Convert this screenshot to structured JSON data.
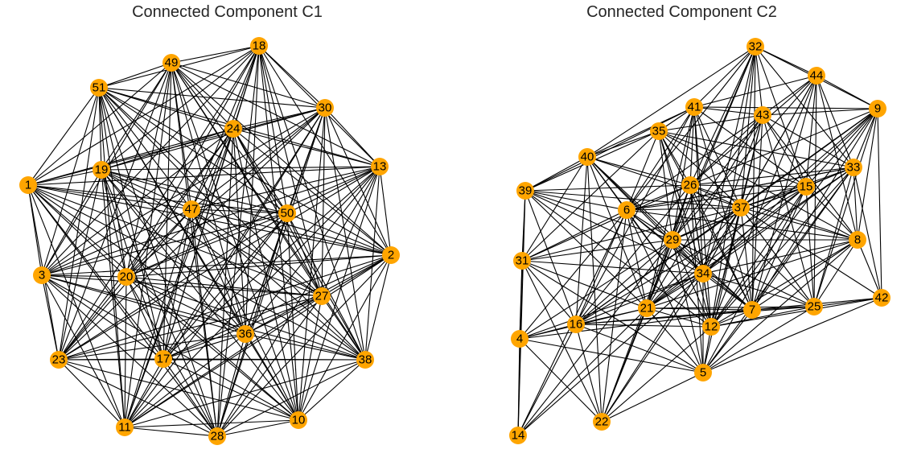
{
  "colors": {
    "node_fill": "#FFA500",
    "edge": "#000000",
    "title_text": "#262626",
    "background": "#FFFFFF"
  },
  "chart_data": [
    {
      "type": "network",
      "title": "Connected Component C1",
      "nodes": [
        "1",
        "2",
        "3",
        "10",
        "11",
        "13",
        "17",
        "18",
        "19",
        "20",
        "23",
        "24",
        "27",
        "28",
        "30",
        "36",
        "38",
        "47",
        "49",
        "50",
        "51"
      ],
      "edge_density": "complete"
    },
    {
      "type": "network",
      "title": "Connected Component C2",
      "nodes": [
        "4",
        "5",
        "6",
        "7",
        "8",
        "9",
        "12",
        "14",
        "15",
        "16",
        "21",
        "22",
        "25",
        "26",
        "29",
        "31",
        "32",
        "33",
        "34",
        "35",
        "37",
        "39",
        "40",
        "41",
        "42",
        "43",
        "44"
      ],
      "edges": [
        [
          "4",
          "14"
        ],
        [
          "4",
          "31"
        ],
        [
          "4",
          "39"
        ],
        [
          "4",
          "16"
        ],
        [
          "4",
          "21"
        ],
        [
          "4",
          "34"
        ],
        [
          "4",
          "29"
        ],
        [
          "4",
          "7"
        ],
        [
          "4",
          "5"
        ],
        [
          "4",
          "22"
        ],
        [
          "4",
          "6"
        ],
        [
          "14",
          "31"
        ],
        [
          "14",
          "39"
        ],
        [
          "14",
          "16"
        ],
        [
          "14",
          "21"
        ],
        [
          "14",
          "29"
        ],
        [
          "14",
          "6"
        ],
        [
          "14",
          "34"
        ],
        [
          "22",
          "16"
        ],
        [
          "22",
          "21"
        ],
        [
          "22",
          "29"
        ],
        [
          "22",
          "6"
        ],
        [
          "22",
          "26"
        ],
        [
          "22",
          "37"
        ],
        [
          "22",
          "34"
        ],
        [
          "22",
          "5"
        ],
        [
          "22",
          "12"
        ],
        [
          "22",
          "31"
        ],
        [
          "22",
          "40"
        ],
        [
          "5",
          "16"
        ],
        [
          "5",
          "21"
        ],
        [
          "5",
          "12"
        ],
        [
          "5",
          "7"
        ],
        [
          "5",
          "25"
        ],
        [
          "5",
          "8"
        ],
        [
          "5",
          "34"
        ],
        [
          "5",
          "37"
        ],
        [
          "5",
          "26"
        ],
        [
          "5",
          "29"
        ],
        [
          "5",
          "6"
        ],
        [
          "5",
          "42"
        ],
        [
          "5",
          "15"
        ],
        [
          "5",
          "33"
        ],
        [
          "5",
          "31"
        ],
        [
          "31",
          "39"
        ],
        [
          "31",
          "40"
        ],
        [
          "31",
          "6"
        ],
        [
          "31",
          "26"
        ],
        [
          "31",
          "29"
        ],
        [
          "31",
          "21"
        ],
        [
          "31",
          "34"
        ],
        [
          "31",
          "37"
        ],
        [
          "31",
          "35"
        ],
        [
          "31",
          "16"
        ],
        [
          "39",
          "40"
        ],
        [
          "39",
          "35"
        ],
        [
          "39",
          "41"
        ],
        [
          "39",
          "26"
        ],
        [
          "39",
          "6"
        ],
        [
          "39",
          "29"
        ],
        [
          "39",
          "21"
        ],
        [
          "39",
          "34"
        ],
        [
          "39",
          "37"
        ],
        [
          "39",
          "16"
        ],
        [
          "39",
          "12"
        ],
        [
          "40",
          "35"
        ],
        [
          "40",
          "41"
        ],
        [
          "40",
          "32"
        ],
        [
          "40",
          "26"
        ],
        [
          "40",
          "6"
        ],
        [
          "40",
          "29"
        ],
        [
          "40",
          "34"
        ],
        [
          "40",
          "37"
        ],
        [
          "40",
          "12"
        ],
        [
          "40",
          "7"
        ],
        [
          "40",
          "21"
        ],
        [
          "40",
          "16"
        ],
        [
          "35",
          "41"
        ],
        [
          "35",
          "43"
        ],
        [
          "35",
          "26"
        ],
        [
          "35",
          "29"
        ],
        [
          "35",
          "6"
        ],
        [
          "35",
          "37"
        ],
        [
          "35",
          "34"
        ],
        [
          "35",
          "12"
        ],
        [
          "35",
          "7"
        ],
        [
          "35",
          "15"
        ],
        [
          "35",
          "33"
        ],
        [
          "35",
          "8"
        ],
        [
          "41",
          "32"
        ],
        [
          "41",
          "43"
        ],
        [
          "41",
          "44"
        ],
        [
          "41",
          "9"
        ],
        [
          "41",
          "26"
        ],
        [
          "41",
          "29"
        ],
        [
          "41",
          "6"
        ],
        [
          "41",
          "37"
        ],
        [
          "41",
          "34"
        ],
        [
          "41",
          "12"
        ],
        [
          "41",
          "7"
        ],
        [
          "41",
          "15"
        ],
        [
          "41",
          "21"
        ],
        [
          "41",
          "16"
        ],
        [
          "32",
          "44"
        ],
        [
          "32",
          "9"
        ],
        [
          "32",
          "43"
        ],
        [
          "32",
          "26"
        ],
        [
          "32",
          "37"
        ],
        [
          "32",
          "34"
        ],
        [
          "32",
          "12"
        ],
        [
          "32",
          "7"
        ],
        [
          "32",
          "15"
        ],
        [
          "32",
          "33"
        ],
        [
          "32",
          "21"
        ],
        [
          "32",
          "29"
        ],
        [
          "32",
          "6"
        ],
        [
          "44",
          "9"
        ],
        [
          "44",
          "43"
        ],
        [
          "44",
          "33"
        ],
        [
          "44",
          "15"
        ],
        [
          "44",
          "37"
        ],
        [
          "44",
          "26"
        ],
        [
          "44",
          "34"
        ],
        [
          "44",
          "12"
        ],
        [
          "44",
          "7"
        ],
        [
          "44",
          "25"
        ],
        [
          "44",
          "8"
        ],
        [
          "44",
          "29"
        ],
        [
          "9",
          "43"
        ],
        [
          "9",
          "33"
        ],
        [
          "9",
          "15"
        ],
        [
          "9",
          "8"
        ],
        [
          "9",
          "42"
        ],
        [
          "9",
          "25"
        ],
        [
          "9",
          "37"
        ],
        [
          "9",
          "34"
        ],
        [
          "9",
          "7"
        ],
        [
          "9",
          "12"
        ],
        [
          "9",
          "26"
        ],
        [
          "9",
          "21"
        ],
        [
          "9",
          "16"
        ],
        [
          "43",
          "26"
        ],
        [
          "43",
          "37"
        ],
        [
          "43",
          "15"
        ],
        [
          "43",
          "33"
        ],
        [
          "43",
          "8"
        ],
        [
          "43",
          "29"
        ],
        [
          "43",
          "34"
        ],
        [
          "43",
          "12"
        ],
        [
          "43",
          "7"
        ],
        [
          "43",
          "25"
        ],
        [
          "43",
          "6"
        ],
        [
          "43",
          "21"
        ],
        [
          "33",
          "15"
        ],
        [
          "33",
          "8"
        ],
        [
          "33",
          "37"
        ],
        [
          "33",
          "26"
        ],
        [
          "33",
          "29"
        ],
        [
          "33",
          "34"
        ],
        [
          "33",
          "7"
        ],
        [
          "33",
          "12"
        ],
        [
          "33",
          "25"
        ],
        [
          "33",
          "6"
        ],
        [
          "33",
          "21"
        ],
        [
          "33",
          "42"
        ],
        [
          "26",
          "6"
        ],
        [
          "26",
          "29"
        ],
        [
          "26",
          "37"
        ],
        [
          "26",
          "15"
        ],
        [
          "26",
          "34"
        ],
        [
          "26",
          "12"
        ],
        [
          "26",
          "7"
        ],
        [
          "26",
          "21"
        ],
        [
          "26",
          "16"
        ],
        [
          "26",
          "8"
        ],
        [
          "26",
          "25"
        ],
        [
          "6",
          "29"
        ],
        [
          "6",
          "37"
        ],
        [
          "6",
          "34"
        ],
        [
          "6",
          "21"
        ],
        [
          "6",
          "16"
        ],
        [
          "6",
          "12"
        ],
        [
          "6",
          "7"
        ],
        [
          "6",
          "15"
        ],
        [
          "6",
          "33"
        ],
        [
          "6",
          "8"
        ],
        [
          "29",
          "37"
        ],
        [
          "29",
          "34"
        ],
        [
          "29",
          "21"
        ],
        [
          "29",
          "16"
        ],
        [
          "29",
          "12"
        ],
        [
          "29",
          "7"
        ],
        [
          "29",
          "15"
        ],
        [
          "29",
          "8"
        ],
        [
          "29",
          "25"
        ],
        [
          "37",
          "15"
        ],
        [
          "37",
          "34"
        ],
        [
          "37",
          "21"
        ],
        [
          "37",
          "16"
        ],
        [
          "37",
          "12"
        ],
        [
          "37",
          "7"
        ],
        [
          "37",
          "8"
        ],
        [
          "37",
          "25"
        ],
        [
          "37",
          "42"
        ],
        [
          "15",
          "34"
        ],
        [
          "15",
          "7"
        ],
        [
          "15",
          "25"
        ],
        [
          "15",
          "8"
        ],
        [
          "15",
          "21"
        ],
        [
          "15",
          "12"
        ],
        [
          "15",
          "16"
        ],
        [
          "34",
          "21"
        ],
        [
          "34",
          "16"
        ],
        [
          "34",
          "12"
        ],
        [
          "34",
          "7"
        ],
        [
          "34",
          "25"
        ],
        [
          "34",
          "8"
        ],
        [
          "21",
          "16"
        ],
        [
          "21",
          "12"
        ],
        [
          "21",
          "7"
        ],
        [
          "21",
          "25"
        ],
        [
          "21",
          "8"
        ],
        [
          "16",
          "12"
        ],
        [
          "16",
          "7"
        ],
        [
          "16",
          "25"
        ],
        [
          "12",
          "7"
        ],
        [
          "12",
          "25"
        ],
        [
          "12",
          "42"
        ],
        [
          "12",
          "8"
        ],
        [
          "7",
          "25"
        ],
        [
          "7",
          "42"
        ],
        [
          "7",
          "8"
        ],
        [
          "25",
          "42"
        ],
        [
          "25",
          "8"
        ],
        [
          "8",
          "42"
        ]
      ]
    }
  ]
}
